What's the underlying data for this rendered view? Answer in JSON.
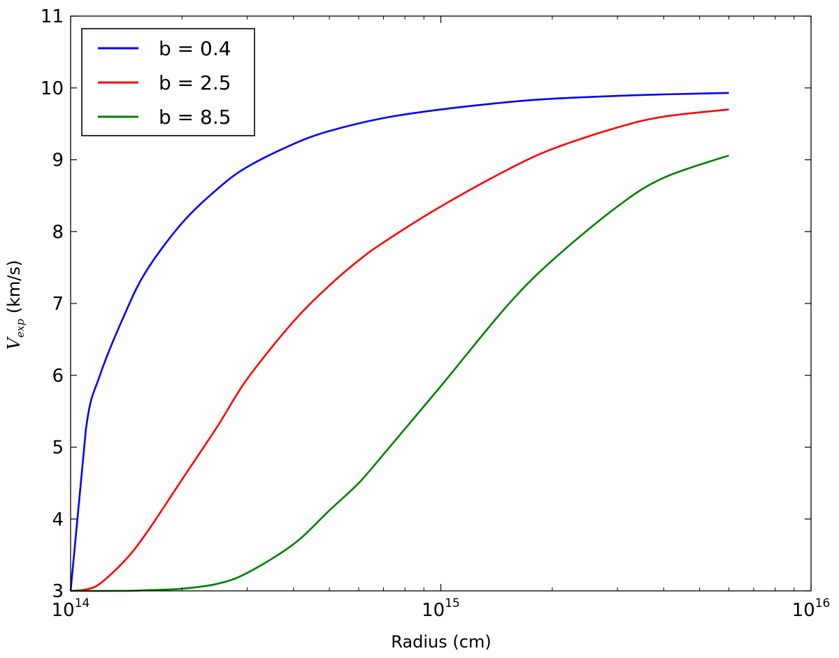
{
  "chart_data": {
    "type": "line",
    "title": "",
    "xlabel": "Radius (cm)",
    "ylabel": "V_exp (km/s)",
    "ylabel_main": "V",
    "ylabel_sub": "exp",
    "ylabel_unit": " (km/s)",
    "xscale": "log",
    "xlim": [
      100000000000000.0,
      1e+16
    ],
    "ylim": [
      3,
      11
    ],
    "x_ticks": [
      {
        "value": 100000000000000.0,
        "base": "10",
        "exp": "14"
      },
      {
        "value": 1000000000000000.0,
        "base": "10",
        "exp": "15"
      },
      {
        "value": 1e+16,
        "base": "10",
        "exp": "16"
      }
    ],
    "y_ticks": [
      3,
      4,
      5,
      6,
      7,
      8,
      9,
      10,
      11
    ],
    "y_tick_labels": [
      "3",
      "4",
      "5",
      "6",
      "7",
      "8",
      "9",
      "10",
      "11"
    ],
    "grid": false,
    "legend_position": "top-left",
    "series": [
      {
        "name": "b = 0.4",
        "color": "#0000ff",
        "x": [
          100000000000000.0,
          110000000000000.0,
          120000000000000.0,
          140000000000000.0,
          160000000000000.0,
          200000000000000.0,
          250000000000000.0,
          300000000000000.0,
          400000000000000.0,
          500000000000000.0,
          700000000000000.0,
          1000000000000000.0,
          1500000000000000.0,
          2000000000000000.0,
          3000000000000000.0,
          4000000000000000.0,
          6000000000000000.0
        ],
        "y": [
          3.0,
          5.25,
          6.0,
          6.85,
          7.45,
          8.12,
          8.6,
          8.9,
          9.22,
          9.4,
          9.58,
          9.7,
          9.8,
          9.85,
          9.89,
          9.91,
          9.93
        ]
      },
      {
        "name": "b = 2.5",
        "color": "#ff0000",
        "x": [
          100000000000000.0,
          110000000000000.0,
          120000000000000.0,
          140000000000000.0,
          160000000000000.0,
          200000000000000.0,
          250000000000000.0,
          300000000000000.0,
          400000000000000.0,
          500000000000000.0,
          600000000000000.0,
          700000000000000.0,
          1000000000000000.0,
          1500000000000000.0,
          2000000000000000.0,
          3000000000000000.0,
          4000000000000000.0,
          6000000000000000.0
        ],
        "y": [
          3.0,
          3.02,
          3.1,
          3.42,
          3.8,
          4.55,
          5.3,
          5.95,
          6.75,
          7.25,
          7.6,
          7.85,
          8.35,
          8.85,
          9.15,
          9.45,
          9.6,
          9.7
        ]
      },
      {
        "name": "b = 8.5",
        "color": "#008000",
        "x": [
          100000000000000.0,
          140000000000000.0,
          160000000000000.0,
          200000000000000.0,
          250000000000000.0,
          300000000000000.0,
          400000000000000.0,
          500000000000000.0,
          600000000000000.0,
          700000000000000.0,
          1000000000000000.0,
          1500000000000000.0,
          2000000000000000.0,
          3000000000000000.0,
          4000000000000000.0,
          6000000000000000.0
        ],
        "y": [
          3.0,
          3.0,
          3.01,
          3.03,
          3.1,
          3.25,
          3.65,
          4.12,
          4.5,
          4.9,
          5.85,
          6.95,
          7.6,
          8.35,
          8.75,
          9.06
        ]
      }
    ]
  }
}
